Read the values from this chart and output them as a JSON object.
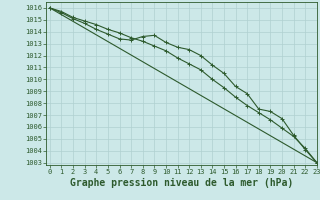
{
  "title": "Graphe pression niveau de la mer (hPa)",
  "xlim": [
    -0.3,
    23
  ],
  "ylim": [
    1002.8,
    1016.5
  ],
  "yticks": [
    1003,
    1004,
    1005,
    1006,
    1007,
    1008,
    1009,
    1010,
    1011,
    1012,
    1013,
    1014,
    1015,
    1016
  ],
  "xticks": [
    0,
    1,
    2,
    3,
    4,
    5,
    6,
    7,
    8,
    9,
    10,
    11,
    12,
    13,
    14,
    15,
    16,
    17,
    18,
    19,
    20,
    21,
    22,
    23
  ],
  "bg_color": "#cce8e8",
  "grid_color": "#b0d0d0",
  "line_color": "#2d5a2d",
  "line1_x": [
    0,
    1,
    2,
    3,
    4,
    5,
    6,
    7,
    8,
    9,
    10,
    11,
    12,
    13,
    14,
    15,
    16,
    17,
    18,
    19,
    20,
    21,
    22,
    23
  ],
  "line1_y": [
    1016.0,
    1015.6,
    1015.1,
    1014.7,
    1014.2,
    1013.8,
    1013.4,
    1013.3,
    1013.6,
    1013.7,
    1013.1,
    1012.7,
    1012.5,
    1012.0,
    1011.2,
    1010.5,
    1009.4,
    1008.8,
    1007.5,
    1007.3,
    1006.7,
    1005.3,
    1004.1,
    1003.0
  ],
  "line2_x": [
    0,
    1,
    2,
    3,
    4,
    5,
    6,
    7,
    8,
    9,
    10,
    11,
    12,
    13,
    14,
    15,
    16,
    17,
    18,
    19,
    20,
    21,
    22,
    23
  ],
  "line2_y": [
    1016.0,
    1015.7,
    1015.2,
    1014.9,
    1014.6,
    1014.2,
    1013.9,
    1013.5,
    1013.2,
    1012.8,
    1012.4,
    1011.8,
    1011.3,
    1010.8,
    1010.0,
    1009.3,
    1008.5,
    1007.8,
    1007.2,
    1006.6,
    1005.9,
    1005.2,
    1004.2,
    1003.0
  ],
  "line3_x": [
    0,
    23
  ],
  "line3_y": [
    1016.0,
    1003.0
  ],
  "title_fontsize": 7,
  "tick_fontsize": 5
}
